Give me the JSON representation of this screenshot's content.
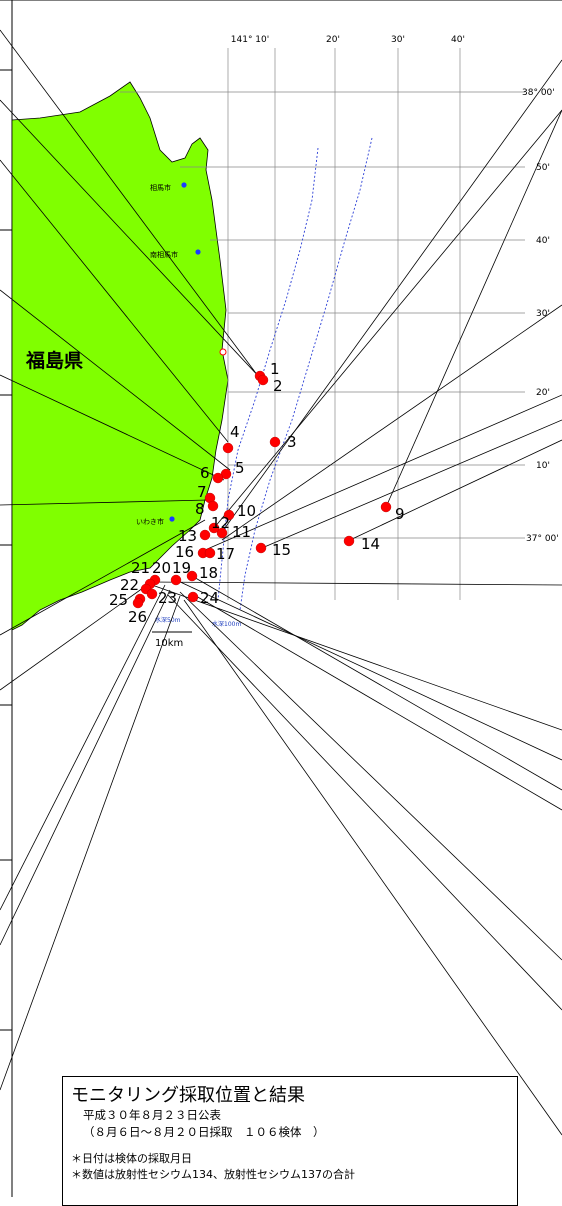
{
  "map": {
    "prefecture_label": "福島県",
    "longitude_labels": [
      "141° 10'",
      "20'",
      "30'",
      "40'"
    ],
    "latitude_labels": [
      "38° 00'",
      "50'",
      "40'",
      "30'",
      "20'",
      "10'",
      "37° 00'"
    ],
    "cities": [
      "相馬市",
      "南相馬市",
      "いわき市"
    ],
    "depth_labels": [
      "水深50m",
      "水深100m"
    ],
    "scale_label": "10km",
    "sampling_points": [
      "1",
      "2",
      "3",
      "4",
      "5",
      "6",
      "7",
      "8",
      "9",
      "10",
      "11",
      "12",
      "13",
      "14",
      "15",
      "16",
      "17",
      "18",
      "19",
      "20",
      "21",
      "22",
      "23",
      "24",
      "25",
      "26"
    ],
    "colors": {
      "land": "#80ff00",
      "point": "#ff0000",
      "depth_line": "#2b3fd6",
      "city_dot": "#1a3cff"
    }
  },
  "legend": {
    "title": "モニタリング採取位置と結果",
    "published": "平成３０年８月２３日公表",
    "period": "（８月６日～８月２０日採取　１０６検体　）",
    "note1": "＊日付は検体の採取月日",
    "note2": "＊数値は放射性セシウム134、放射性セシウム137の合計"
  }
}
